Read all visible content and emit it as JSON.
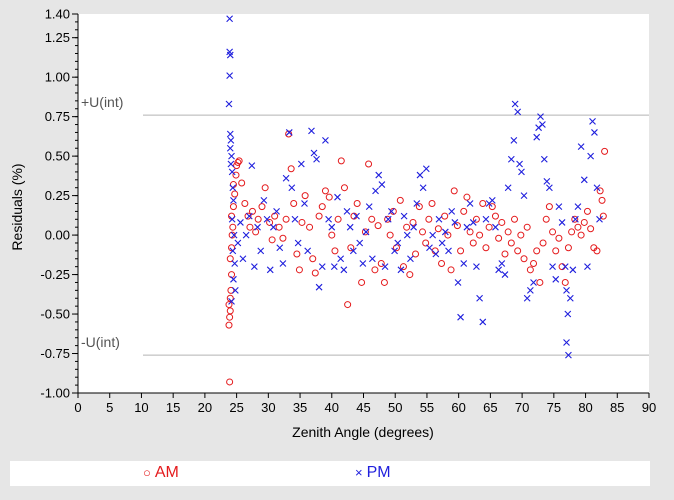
{
  "chart_data": {
    "type": "scatter",
    "title": "",
    "xlabel": "Zenith Angle (degrees)",
    "ylabel": "Residuals (%)",
    "xlim": [
      0,
      90
    ],
    "ylim": [
      -1.0,
      1.4
    ],
    "x_ticks": [
      "0",
      "5",
      "10",
      "15",
      "20",
      "25",
      "30",
      "35",
      "40",
      "45",
      "50",
      "55",
      "60",
      "65",
      "70",
      "75",
      "80",
      "85",
      "90"
    ],
    "y_ticks": [
      "1.40",
      "1.25",
      "1.00",
      "0.75",
      "0.50",
      "0.25",
      "0.00",
      "-0.25",
      "-0.50",
      "-0.75",
      "-1.00"
    ],
    "reference_lines": [
      {
        "label": "+U(int)",
        "y": 0.76,
        "color": "#b3b3b3"
      },
      {
        "label": "-U(int)",
        "y": -0.76,
        "color": "#b3b3b3"
      }
    ],
    "series": [
      {
        "name": "AM",
        "marker": "circle",
        "color": "#e41a1c",
        "points": [
          [
            23.9,
            -0.93
          ],
          [
            23.8,
            -0.57
          ],
          [
            23.9,
            -0.52
          ],
          [
            24.0,
            -0.48
          ],
          [
            23.8,
            -0.44
          ],
          [
            24.0,
            -0.4
          ],
          [
            24.1,
            -0.35
          ],
          [
            24.2,
            -0.25
          ],
          [
            24.0,
            -0.15
          ],
          [
            24.2,
            -0.08
          ],
          [
            24.3,
            0.0
          ],
          [
            24.4,
            0.05
          ],
          [
            24.2,
            0.12
          ],
          [
            24.5,
            0.18
          ],
          [
            24.7,
            0.26
          ],
          [
            24.5,
            0.32
          ],
          [
            24.9,
            0.38
          ],
          [
            25.0,
            0.44
          ],
          [
            25.2,
            0.46
          ],
          [
            25.4,
            0.47
          ],
          [
            25.8,
            0.33
          ],
          [
            26.3,
            0.2
          ],
          [
            26.8,
            0.12
          ],
          [
            27.1,
            0.05
          ],
          [
            27.5,
            0.15
          ],
          [
            28.0,
            0.02
          ],
          [
            28.4,
            0.1
          ],
          [
            29.0,
            0.18
          ],
          [
            29.5,
            0.3
          ],
          [
            30.2,
            0.08
          ],
          [
            30.6,
            -0.03
          ],
          [
            31.0,
            0.12
          ],
          [
            31.7,
            0.05
          ],
          [
            32.3,
            -0.02
          ],
          [
            32.8,
            0.1
          ],
          [
            33.2,
            0.64
          ],
          [
            33.6,
            0.42
          ],
          [
            34.0,
            0.2
          ],
          [
            34.5,
            -0.12
          ],
          [
            34.9,
            -0.22
          ],
          [
            35.3,
            0.08
          ],
          [
            35.8,
            0.25
          ],
          [
            36.5,
            0.05
          ],
          [
            37.0,
            -0.15
          ],
          [
            37.4,
            -0.24
          ],
          [
            38.0,
            0.12
          ],
          [
            38.5,
            0.18
          ],
          [
            39.0,
            0.28
          ],
          [
            39.6,
            0.24
          ],
          [
            40.0,
            0.0
          ],
          [
            40.5,
            -0.1
          ],
          [
            41.0,
            0.1
          ],
          [
            41.5,
            0.47
          ],
          [
            42.0,
            0.3
          ],
          [
            42.5,
            -0.44
          ],
          [
            43.0,
            -0.08
          ],
          [
            43.5,
            0.12
          ],
          [
            44.0,
            0.2
          ],
          [
            44.7,
            -0.3
          ],
          [
            45.3,
            0.02
          ],
          [
            45.8,
            0.45
          ],
          [
            46.3,
            0.1
          ],
          [
            46.8,
            -0.22
          ],
          [
            47.3,
            0.06
          ],
          [
            47.8,
            -0.18
          ],
          [
            48.3,
            -0.3
          ],
          [
            48.8,
            0.1
          ],
          [
            49.2,
            0.0
          ],
          [
            49.7,
            0.15
          ],
          [
            50.2,
            -0.08
          ],
          [
            50.8,
            0.22
          ],
          [
            51.3,
            -0.2
          ],
          [
            51.8,
            0.05
          ],
          [
            52.3,
            -0.25
          ],
          [
            52.8,
            0.08
          ],
          [
            53.2,
            -0.12
          ],
          [
            53.8,
            0.18
          ],
          [
            54.3,
            0.02
          ],
          [
            54.8,
            -0.05
          ],
          [
            55.3,
            0.1
          ],
          [
            55.8,
            0.2
          ],
          [
            56.3,
            -0.1
          ],
          [
            56.8,
            0.04
          ],
          [
            57.3,
            -0.18
          ],
          [
            57.8,
            0.12
          ],
          [
            58.3,
            0.0
          ],
          [
            58.8,
            -0.22
          ],
          [
            59.3,
            0.28
          ],
          [
            59.8,
            0.06
          ],
          [
            60.3,
            -0.1
          ],
          [
            60.8,
            0.15
          ],
          [
            61.3,
            0.24
          ],
          [
            61.8,
            0.02
          ],
          [
            62.3,
            -0.05
          ],
          [
            62.8,
            0.1
          ],
          [
            63.3,
            0.0
          ],
          [
            63.8,
            0.2
          ],
          [
            64.3,
            -0.08
          ],
          [
            64.8,
            0.05
          ],
          [
            65.3,
            0.18
          ],
          [
            65.8,
            0.12
          ],
          [
            66.3,
            -0.02
          ],
          [
            66.8,
            0.08
          ],
          [
            67.3,
            -0.12
          ],
          [
            67.8,
            0.02
          ],
          [
            68.3,
            -0.05
          ],
          [
            68.8,
            0.1
          ],
          [
            69.3,
            -0.1
          ],
          [
            69.8,
            0.0
          ],
          [
            70.3,
            -0.15
          ],
          [
            70.8,
            0.05
          ],
          [
            71.3,
            -0.22
          ],
          [
            71.8,
            -0.18
          ],
          [
            72.3,
            -0.1
          ],
          [
            72.8,
            -0.3
          ],
          [
            73.3,
            -0.05
          ],
          [
            73.8,
            0.1
          ],
          [
            74.3,
            0.18
          ],
          [
            74.8,
            0.02
          ],
          [
            75.3,
            -0.1
          ],
          [
            75.8,
            -0.02
          ],
          [
            76.3,
            -0.2
          ],
          [
            76.8,
            -0.3
          ],
          [
            77.3,
            -0.08
          ],
          [
            77.8,
            0.02
          ],
          [
            78.3,
            0.1
          ],
          [
            78.8,
            0.05
          ],
          [
            79.3,
            0.0
          ],
          [
            79.8,
            0.08
          ],
          [
            80.3,
            0.15
          ],
          [
            80.8,
            0.04
          ],
          [
            81.3,
            -0.08
          ],
          [
            81.8,
            -0.1
          ],
          [
            82.3,
            0.28
          ],
          [
            82.6,
            0.22
          ],
          [
            83.0,
            0.53
          ],
          [
            82.8,
            0.12
          ]
        ]
      },
      {
        "name": "PM",
        "marker": "cross",
        "color": "#1f1fdd",
        "points": [
          [
            23.9,
            1.37
          ],
          [
            23.9,
            1.16
          ],
          [
            24.0,
            1.14
          ],
          [
            23.9,
            1.01
          ],
          [
            23.8,
            0.83
          ],
          [
            24.0,
            0.64
          ],
          [
            24.1,
            0.6
          ],
          [
            24.0,
            0.55
          ],
          [
            24.2,
            0.5
          ],
          [
            24.1,
            0.45
          ],
          [
            24.3,
            0.4
          ],
          [
            24.4,
            0.3
          ],
          [
            24.5,
            0.22
          ],
          [
            24.3,
            0.1
          ],
          [
            24.6,
            0.0
          ],
          [
            24.4,
            -0.1
          ],
          [
            24.7,
            -0.18
          ],
          [
            24.5,
            -0.28
          ],
          [
            24.8,
            -0.35
          ],
          [
            24.2,
            -0.42
          ],
          [
            25.2,
            -0.05
          ],
          [
            25.6,
            0.08
          ],
          [
            26.0,
            -0.15
          ],
          [
            26.5,
            0.0
          ],
          [
            27.0,
            0.12
          ],
          [
            27.4,
            0.44
          ],
          [
            27.8,
            -0.2
          ],
          [
            28.3,
            0.05
          ],
          [
            28.8,
            -0.1
          ],
          [
            29.3,
            0.22
          ],
          [
            29.8,
            0.1
          ],
          [
            30.3,
            -0.22
          ],
          [
            30.8,
            0.05
          ],
          [
            31.3,
            0.15
          ],
          [
            31.8,
            -0.08
          ],
          [
            32.3,
            -0.18
          ],
          [
            32.8,
            0.36
          ],
          [
            33.3,
            0.65
          ],
          [
            33.7,
            0.3
          ],
          [
            34.2,
            0.1
          ],
          [
            34.7,
            -0.05
          ],
          [
            35.2,
            0.45
          ],
          [
            35.7,
            0.2
          ],
          [
            36.2,
            -0.1
          ],
          [
            36.8,
            0.66
          ],
          [
            37.2,
            0.52
          ],
          [
            37.6,
            0.48
          ],
          [
            38.0,
            -0.33
          ],
          [
            38.5,
            -0.2
          ],
          [
            39.0,
            0.6
          ],
          [
            39.5,
            0.1
          ],
          [
            40.0,
            0.05
          ],
          [
            40.4,
            -0.2
          ],
          [
            40.9,
            0.24
          ],
          [
            41.4,
            -0.15
          ],
          [
            41.9,
            -0.22
          ],
          [
            42.4,
            0.15
          ],
          [
            42.9,
            0.05
          ],
          [
            43.4,
            -0.1
          ],
          [
            43.9,
            0.12
          ],
          [
            44.4,
            -0.05
          ],
          [
            44.9,
            -0.18
          ],
          [
            45.4,
            0.02
          ],
          [
            45.9,
            0.18
          ],
          [
            46.4,
            -0.15
          ],
          [
            46.9,
            0.28
          ],
          [
            47.4,
            0.38
          ],
          [
            47.9,
            0.32
          ],
          [
            48.4,
            -0.2
          ],
          [
            48.9,
            0.1
          ],
          [
            49.4,
            0.15
          ],
          [
            49.9,
            -0.1
          ],
          [
            50.4,
            -0.05
          ],
          [
            50.9,
            -0.22
          ],
          [
            51.4,
            0.12
          ],
          [
            51.9,
            0.0
          ],
          [
            52.4,
            -0.15
          ],
          [
            52.9,
            0.05
          ],
          [
            53.4,
            0.2
          ],
          [
            53.9,
            0.38
          ],
          [
            54.4,
            0.3
          ],
          [
            54.9,
            0.42
          ],
          [
            55.4,
            -0.08
          ],
          [
            55.9,
            0.0
          ],
          [
            56.4,
            -0.12
          ],
          [
            56.9,
            0.1
          ],
          [
            57.4,
            -0.05
          ],
          [
            57.9,
            0.02
          ],
          [
            58.4,
            -0.1
          ],
          [
            58.9,
            0.15
          ],
          [
            59.4,
            0.08
          ],
          [
            59.9,
            -0.3
          ],
          [
            60.3,
            -0.52
          ],
          [
            60.8,
            -0.18
          ],
          [
            61.3,
            0.05
          ],
          [
            61.8,
            0.2
          ],
          [
            62.3,
            0.08
          ],
          [
            62.8,
            -0.2
          ],
          [
            63.3,
            -0.4
          ],
          [
            63.8,
            -0.55
          ],
          [
            64.3,
            0.1
          ],
          [
            64.8,
            0.2
          ],
          [
            65.3,
            0.22
          ],
          [
            65.8,
            0.05
          ],
          [
            66.3,
            -0.22
          ],
          [
            66.8,
            -0.18
          ],
          [
            67.3,
            -0.25
          ],
          [
            67.8,
            0.3
          ],
          [
            68.3,
            0.48
          ],
          [
            68.7,
            0.6
          ],
          [
            68.9,
            0.83
          ],
          [
            69.3,
            0.78
          ],
          [
            69.6,
            0.45
          ],
          [
            69.9,
            0.4
          ],
          [
            70.3,
            0.25
          ],
          [
            70.8,
            -0.4
          ],
          [
            71.3,
            -0.35
          ],
          [
            71.8,
            -0.3
          ],
          [
            72.3,
            0.62
          ],
          [
            72.6,
            0.68
          ],
          [
            72.9,
            0.75
          ],
          [
            73.2,
            0.7
          ],
          [
            73.5,
            0.48
          ],
          [
            73.9,
            0.34
          ],
          [
            74.3,
            0.3
          ],
          [
            74.8,
            -0.2
          ],
          [
            75.3,
            -0.28
          ],
          [
            75.8,
            0.18
          ],
          [
            76.3,
            0.08
          ],
          [
            76.8,
            -0.2
          ],
          [
            77.0,
            -0.35
          ],
          [
            77.2,
            -0.5
          ],
          [
            77.0,
            -0.68
          ],
          [
            77.3,
            -0.76
          ],
          [
            77.6,
            -0.4
          ],
          [
            78.0,
            -0.22
          ],
          [
            78.4,
            0.1
          ],
          [
            78.8,
            0.18
          ],
          [
            79.3,
            0.56
          ],
          [
            79.8,
            0.35
          ],
          [
            80.3,
            -0.2
          ],
          [
            80.8,
            0.5
          ],
          [
            81.1,
            0.72
          ],
          [
            81.4,
            0.65
          ],
          [
            81.8,
            0.3
          ],
          [
            82.2,
            0.1
          ]
        ]
      }
    ],
    "legend": {
      "position": "bottom",
      "items": [
        "AM",
        "PM"
      ]
    },
    "grid": false
  }
}
